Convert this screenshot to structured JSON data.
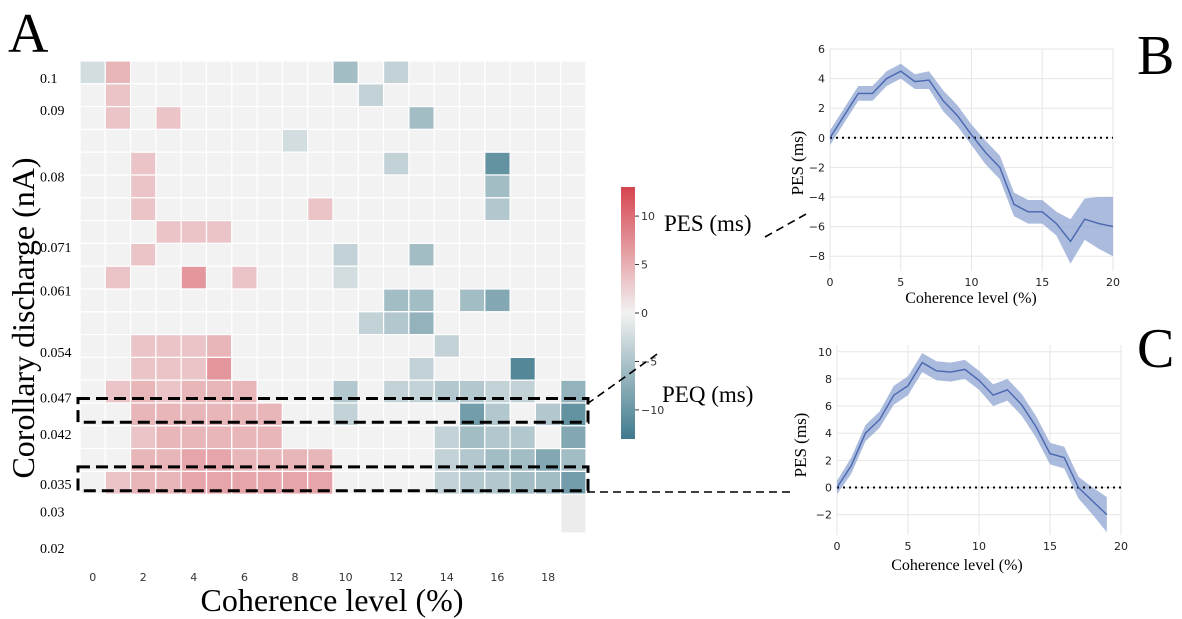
{
  "panel_letters": {
    "a": "A",
    "b": "B",
    "c": "C"
  },
  "chart_data": [
    {
      "panel": "A",
      "type": "heatmap",
      "xlabel": "Coherence level (%)",
      "ylabel": "Corollary discharge (nA)",
      "x_tick_labels": [
        "0",
        "2",
        "4",
        "6",
        "8",
        "10",
        "12",
        "14",
        "16",
        "18"
      ],
      "y_tick_labels": [
        "0.1",
        "0.09",
        "0.08",
        "0.071",
        "0.061",
        "0.054",
        "0.047",
        "0.042",
        "0.035",
        "0.03",
        "0.02"
      ],
      "columns": 20,
      "rows": 19,
      "value_range": [
        -13,
        13
      ],
      "colorbar": {
        "ticks": [
          "10",
          "5",
          "0",
          "−5",
          "−10"
        ],
        "tick_values": [
          10,
          5,
          0,
          -5,
          -10
        ],
        "label_positive": "PES (ms)",
        "label_negative": "PEQ (ms)"
      },
      "colors": {
        "positive": "#d64550",
        "neutral": "#f2f2f2",
        "negative": "#3f7a8c"
      },
      "highlight_rows": [
        15,
        18
      ],
      "cells": [
        [
          -2,
          4,
          0,
          0,
          0,
          0,
          0,
          0,
          0,
          0,
          -5,
          0,
          -3,
          0,
          0,
          0,
          0,
          0,
          0,
          0
        ],
        [
          0,
          3,
          0,
          0,
          0,
          0,
          0,
          0,
          0,
          0,
          0,
          -3,
          0,
          0,
          0,
          0,
          0,
          0,
          0,
          0
        ],
        [
          0,
          3,
          0,
          3,
          0,
          0,
          0,
          0,
          0,
          0,
          0,
          0,
          0,
          -5,
          0,
          0,
          0,
          0,
          0,
          0
        ],
        [
          0,
          0,
          0,
          0,
          0,
          0,
          0,
          0,
          -2,
          0,
          0,
          0,
          0,
          0,
          0,
          0,
          0,
          0,
          0,
          0
        ],
        [
          0,
          0,
          3,
          0,
          0,
          0,
          0,
          0,
          0,
          0,
          0,
          0,
          -3,
          0,
          0,
          0,
          -9,
          0,
          0,
          0
        ],
        [
          0,
          0,
          3,
          0,
          0,
          0,
          0,
          0,
          0,
          0,
          0,
          0,
          0,
          0,
          0,
          0,
          -5,
          0,
          0,
          0
        ],
        [
          0,
          0,
          3,
          0,
          0,
          0,
          0,
          0,
          0,
          3,
          0,
          0,
          0,
          0,
          0,
          0,
          -4,
          0,
          0,
          0
        ],
        [
          0,
          0,
          0,
          3,
          3,
          3,
          0,
          0,
          0,
          0,
          0,
          0,
          0,
          0,
          0,
          0,
          0,
          0,
          0,
          0
        ],
        [
          0,
          0,
          3,
          0,
          0,
          0,
          0,
          0,
          0,
          0,
          -3,
          0,
          0,
          -5,
          0,
          0,
          0,
          0,
          0,
          0
        ],
        [
          0,
          3,
          0,
          0,
          6,
          0,
          3,
          0,
          0,
          0,
          -2,
          0,
          0,
          0,
          0,
          0,
          0,
          0,
          0,
          0
        ],
        [
          0,
          0,
          0,
          0,
          0,
          0,
          0,
          0,
          0,
          0,
          0,
          0,
          -5,
          -5,
          0,
          -5,
          -7,
          0,
          0,
          0
        ],
        [
          0,
          0,
          0,
          0,
          0,
          0,
          0,
          0,
          0,
          0,
          0,
          -3,
          -4,
          -6,
          0,
          0,
          0,
          0,
          0,
          0
        ],
        [
          0,
          0,
          3,
          3,
          3,
          4,
          0,
          0,
          0,
          0,
          0,
          0,
          0,
          0,
          -3,
          0,
          0,
          0,
          0,
          0
        ],
        [
          0,
          0,
          3,
          3,
          3,
          6,
          0,
          0,
          0,
          0,
          0,
          0,
          0,
          -3,
          0,
          0,
          0,
          -10,
          0,
          0
        ],
        [
          0,
          3,
          4,
          3,
          4,
          4,
          4,
          0,
          0,
          0,
          -4,
          0,
          -3,
          -3,
          -4,
          -4,
          -3,
          -3,
          0,
          -6
        ],
        [
          0,
          0,
          4,
          4,
          4,
          4,
          4,
          4,
          0,
          0,
          -3,
          0,
          0,
          0,
          0,
          -8,
          -4,
          0,
          -4,
          -9
        ],
        [
          0,
          0,
          3,
          4,
          4,
          4,
          4,
          4,
          0,
          0,
          0,
          0,
          0,
          0,
          -3,
          -5,
          -4,
          -4,
          0,
          -7
        ],
        [
          0,
          0,
          4,
          4,
          5,
          5,
          4,
          4,
          4,
          4,
          0,
          0,
          0,
          0,
          -3,
          -4,
          -5,
          -5,
          -7,
          -5
        ],
        [
          0,
          3,
          4,
          4,
          5,
          5,
          5,
          5,
          5,
          5,
          0,
          0,
          0,
          0,
          -3,
          -4,
          -4,
          -5,
          -5,
          -8
        ]
      ]
    },
    {
      "panel": "B",
      "type": "line",
      "xlabel": "Coherence level (%)",
      "ylabel": "PES (ms)",
      "xlim": [
        0,
        20
      ],
      "ylim": [
        -9,
        6
      ],
      "xticks": [
        0,
        5,
        10,
        15,
        20
      ],
      "yticks": [
        -8,
        -6,
        -4,
        -2,
        0,
        2,
        4,
        6
      ],
      "zero_line": "dotted",
      "series": [
        {
          "x": [
            0,
            1,
            2,
            3,
            4,
            5,
            6,
            7,
            8,
            9,
            10,
            11,
            12,
            13,
            14,
            15,
            16,
            17,
            18,
            19,
            20
          ],
          "values": [
            0.0,
            1.5,
            3.0,
            3.0,
            4.0,
            4.5,
            3.8,
            3.9,
            2.5,
            1.5,
            0.2,
            -1.0,
            -2.0,
            -4.5,
            -5.0,
            -5.0,
            -5.8,
            -7.0,
            -5.5,
            -5.8,
            -6.0
          ],
          "lower": [
            -0.5,
            1.0,
            2.5,
            2.5,
            3.5,
            4.0,
            3.3,
            3.3,
            1.8,
            0.8,
            -0.5,
            -1.8,
            -2.8,
            -5.3,
            -5.8,
            -5.8,
            -6.6,
            -8.5,
            -6.9,
            -7.5,
            -8.0
          ],
          "upper": [
            0.5,
            2.0,
            3.5,
            3.5,
            4.5,
            5.0,
            4.3,
            4.5,
            3.2,
            2.2,
            0.9,
            -0.2,
            -1.2,
            -3.7,
            -4.2,
            -4.2,
            -5.0,
            -5.5,
            -4.1,
            -4.0,
            -4.0
          ]
        }
      ]
    },
    {
      "panel": "C",
      "type": "line",
      "xlabel": "Coherence level (%)",
      "ylabel": "PES (ms)",
      "xlim": [
        0,
        20
      ],
      "ylim": [
        -3.5,
        10.5
      ],
      "xticks": [
        0,
        5,
        10,
        15,
        20
      ],
      "yticks": [
        -2,
        0,
        2,
        4,
        6,
        8,
        10
      ],
      "zero_line": "dotted",
      "series": [
        {
          "x": [
            0,
            1,
            2,
            3,
            4,
            5,
            6,
            7,
            8,
            9,
            10,
            11,
            12,
            13,
            14,
            15,
            16,
            17,
            18,
            19
          ],
          "values": [
            0.0,
            1.6,
            4.0,
            5.0,
            6.8,
            7.5,
            9.2,
            8.6,
            8.5,
            8.7,
            7.9,
            6.8,
            7.2,
            6.1,
            4.5,
            2.5,
            2.2,
            0.0,
            -1.0,
            -2.0
          ],
          "lower": [
            -0.5,
            1.0,
            3.4,
            4.4,
            6.1,
            6.8,
            8.5,
            7.9,
            7.8,
            8.0,
            7.2,
            6.0,
            6.4,
            5.3,
            3.7,
            1.7,
            1.4,
            -0.8,
            -2.0,
            -3.3
          ],
          "upper": [
            0.5,
            2.2,
            4.6,
            5.6,
            7.5,
            8.2,
            9.9,
            9.3,
            9.2,
            9.4,
            8.6,
            7.6,
            8.0,
            6.9,
            5.3,
            3.3,
            3.0,
            0.8,
            0.0,
            -0.7
          ]
        }
      ]
    }
  ]
}
